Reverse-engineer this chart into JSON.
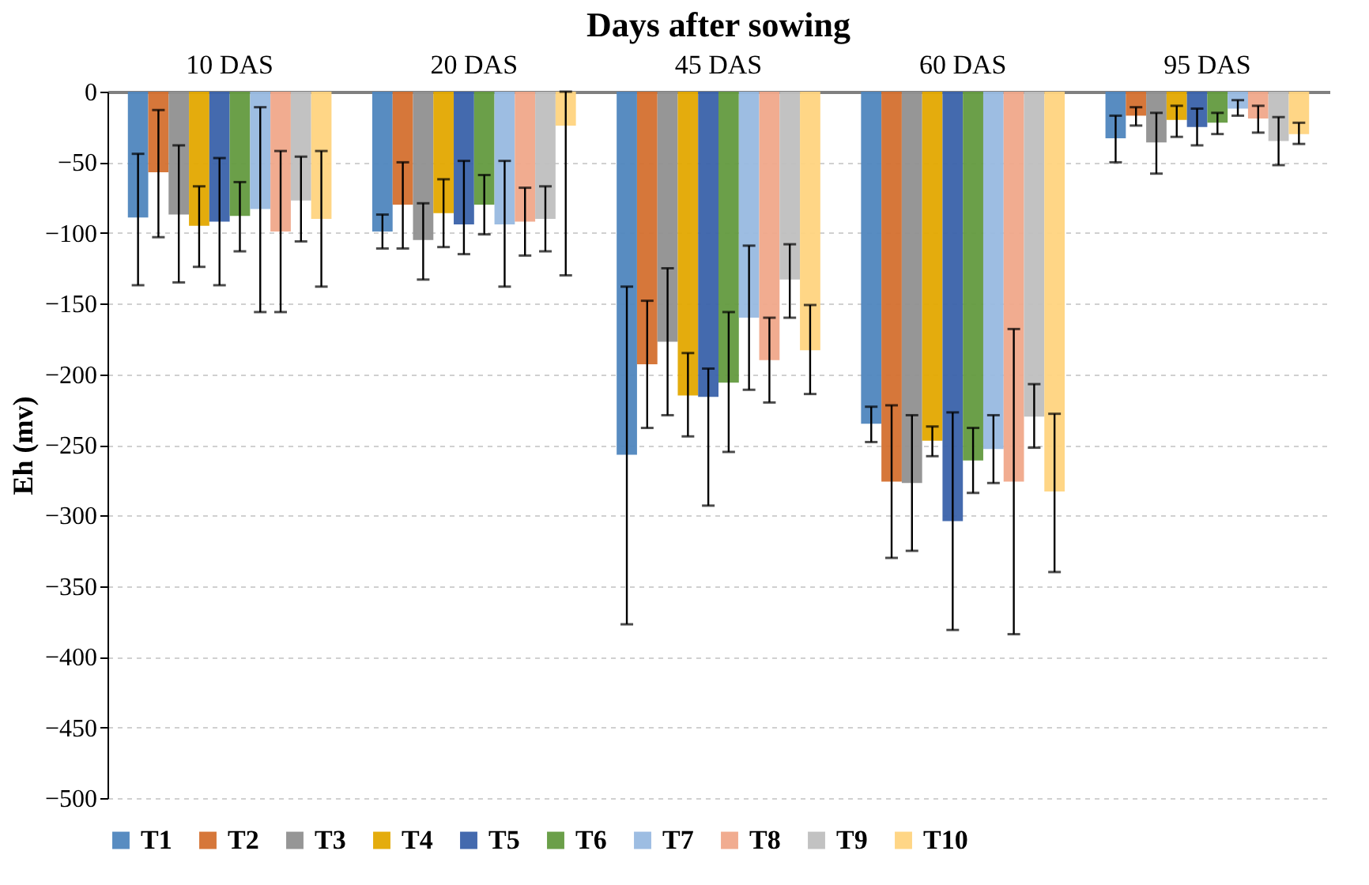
{
  "chart_data": {
    "type": "bar",
    "title": "Days after sowing",
    "ylabel": "Eh (mv)",
    "categories": [
      "10 DAS",
      "20 DAS",
      "45 DAS",
      "60 DAS",
      "95 DAS"
    ],
    "series": [
      {
        "name": "T1",
        "color": "#4f86be",
        "values": [
          -89,
          -99,
          -257,
          -235,
          -33
        ],
        "errors": [
          [
            -137,
            -44
          ],
          [
            -111,
            -87
          ],
          [
            -377,
            -138
          ],
          [
            -248,
            -223
          ],
          [
            -50,
            -17
          ]
        ]
      },
      {
        "name": "T2",
        "color": "#d4702f",
        "values": [
          -57,
          -80,
          -193,
          -276,
          -17
        ],
        "errors": [
          [
            -103,
            -13
          ],
          [
            -111,
            -50
          ],
          [
            -238,
            -148
          ],
          [
            -330,
            -222
          ],
          [
            -24,
            -11
          ]
        ]
      },
      {
        "name": "T3",
        "color": "#909090",
        "values": [
          -87,
          -105,
          -177,
          -277,
          -36
        ],
        "errors": [
          [
            -135,
            -38
          ],
          [
            -133,
            -79
          ],
          [
            -229,
            -125
          ],
          [
            -325,
            -229
          ],
          [
            -58,
            -15
          ]
        ]
      },
      {
        "name": "T4",
        "color": "#e3a800",
        "values": [
          -95,
          -86,
          -215,
          -247,
          -20
        ],
        "errors": [
          [
            -124,
            -67
          ],
          [
            -110,
            -62
          ],
          [
            -244,
            -185
          ],
          [
            -258,
            -237
          ],
          [
            -32,
            -10
          ]
        ]
      },
      {
        "name": "T5",
        "color": "#3a62aa",
        "values": [
          -92,
          -94,
          -216,
          -304,
          -25
        ],
        "errors": [
          [
            -137,
            -47
          ],
          [
            -115,
            -49
          ],
          [
            -293,
            -196
          ],
          [
            -381,
            -227
          ],
          [
            -38,
            -12
          ]
        ]
      },
      {
        "name": "T6",
        "color": "#639a3f",
        "values": [
          -88,
          -80,
          -206,
          -261,
          -22
        ],
        "errors": [
          [
            -113,
            -64
          ],
          [
            -101,
            -59
          ],
          [
            -255,
            -156
          ],
          [
            -284,
            -238
          ],
          [
            -30,
            -15
          ]
        ]
      },
      {
        "name": "T7",
        "color": "#98b9e0",
        "values": [
          -83,
          -94,
          -160,
          -253,
          -12
        ],
        "errors": [
          [
            -156,
            -11
          ],
          [
            -138,
            -49
          ],
          [
            -211,
            -109
          ],
          [
            -277,
            -229
          ],
          [
            -17,
            -6
          ]
        ]
      },
      {
        "name": "T8",
        "color": "#f0a88a",
        "values": [
          -99,
          -92,
          -190,
          -276,
          -19
        ],
        "errors": [
          [
            -156,
            -42
          ],
          [
            -116,
            -68
          ],
          [
            -220,
            -160
          ],
          [
            -384,
            -168
          ],
          [
            -29,
            -10
          ]
        ]
      },
      {
        "name": "T9",
        "color": "#bfbfbf",
        "values": [
          -77,
          -90,
          -133,
          -230,
          -35
        ],
        "errors": [
          [
            -106,
            -46
          ],
          [
            -113,
            -67
          ],
          [
            -160,
            -108
          ],
          [
            -252,
            -207
          ],
          [
            -52,
            -18
          ]
        ]
      },
      {
        "name": "T10",
        "color": "#ffd480",
        "values": [
          -90,
          -24,
          -183,
          -283,
          -30
        ],
        "errors": [
          [
            -138,
            -42
          ],
          [
            -130,
            0
          ],
          [
            -214,
            -151
          ],
          [
            -340,
            -228
          ],
          [
            -37,
            -22
          ]
        ]
      }
    ],
    "ylim": [
      -500,
      0
    ],
    "yticks": [
      -500,
      -450,
      -400,
      -350,
      -300,
      -250,
      -200,
      -150,
      -100,
      -50,
      0
    ],
    "grid": "y",
    "legend": "bottom"
  }
}
